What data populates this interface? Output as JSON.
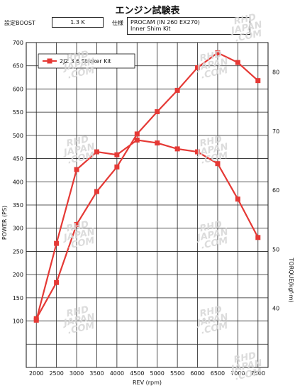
{
  "header": {
    "title": "エンジン試験表",
    "boost_label": "設定BOOST",
    "boost_value": "1.3 K",
    "spec_label": "仕様",
    "spec_line1": "PROCAM (IN 260 EX270)",
    "spec_line2": "Inner Shim Kit"
  },
  "watermark_text": [
    "RHD",
    "JAPAN",
    ".COM"
  ],
  "chart_data": {
    "type": "line",
    "xlabel": "REV (rpm)",
    "ylabel": "POWER (PS)",
    "y2label": "TORQUE(kgf-m)",
    "x": [
      2000,
      2500,
      3000,
      3500,
      4000,
      4500,
      5000,
      5500,
      6000,
      6500,
      7000,
      7500
    ],
    "xlim": [
      1750,
      7750
    ],
    "ylim": [
      0,
      700
    ],
    "y2lim": [
      30,
      85
    ],
    "y_ticks": [
      100,
      150,
      200,
      250,
      300,
      350,
      400,
      450,
      500,
      550,
      600,
      650,
      700
    ],
    "y2_ticks": [
      40,
      50,
      60,
      70,
      80
    ],
    "grid": true,
    "legend": "top-left",
    "series": [
      {
        "name": "2JZ 3.6 Stroker Kit",
        "axis": "left",
        "color": "#e53935",
        "values": [
          105,
          183,
          308,
          379,
          432,
          503,
          551,
          597,
          646,
          678,
          657,
          618
        ]
      },
      {
        "name": "",
        "axis": "right",
        "color": "#e53935",
        "values": [
          38,
          51,
          63.5,
          66.5,
          66,
          68.5,
          68,
          67,
          66.5,
          64.5,
          58.5,
          52
        ]
      }
    ]
  }
}
